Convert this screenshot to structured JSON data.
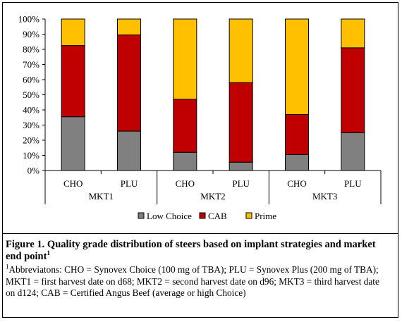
{
  "chart_data": {
    "type": "bar",
    "stacked": true,
    "percent": true,
    "ylim": [
      0,
      100
    ],
    "yticks": [
      "0%",
      "10%",
      "20%",
      "30%",
      "40%",
      "50%",
      "60%",
      "70%",
      "80%",
      "90%",
      "100%"
    ],
    "groups": [
      "MKT1",
      "MKT2",
      "MKT3"
    ],
    "categories": [
      "CHO",
      "PLU",
      "CHO",
      "PLU",
      "CHO",
      "PLU"
    ],
    "series": [
      {
        "name": "Low Choice",
        "color": "#808080",
        "values": [
          35.5,
          26,
          12,
          5.5,
          10.5,
          25
        ]
      },
      {
        "name": "CAB",
        "color": "#C00000",
        "values": [
          47,
          63.5,
          35,
          52.5,
          26.5,
          56
        ]
      },
      {
        "name": "Prime",
        "color": "#FFC000",
        "values": [
          17.5,
          10.5,
          53,
          42,
          63,
          19
        ]
      }
    ],
    "legend_position": "bottom",
    "grid": false
  },
  "caption": {
    "title": "Figure 1. Quality grade distribution of steers based on implant strategies and market end point",
    "title_sup": "1",
    "note_sup": "1",
    "note": "Abbreviatons: CHO = Synovex Choice (100 mg of TBA); PLU = Synovex Plus (200 mg of TBA); MKT1 = first harvest date on d68; MKT2 = second harvest date on d96; MKT3 = third harvest date on d124; CAB = Certified Angus Beef (average or high Choice)"
  }
}
